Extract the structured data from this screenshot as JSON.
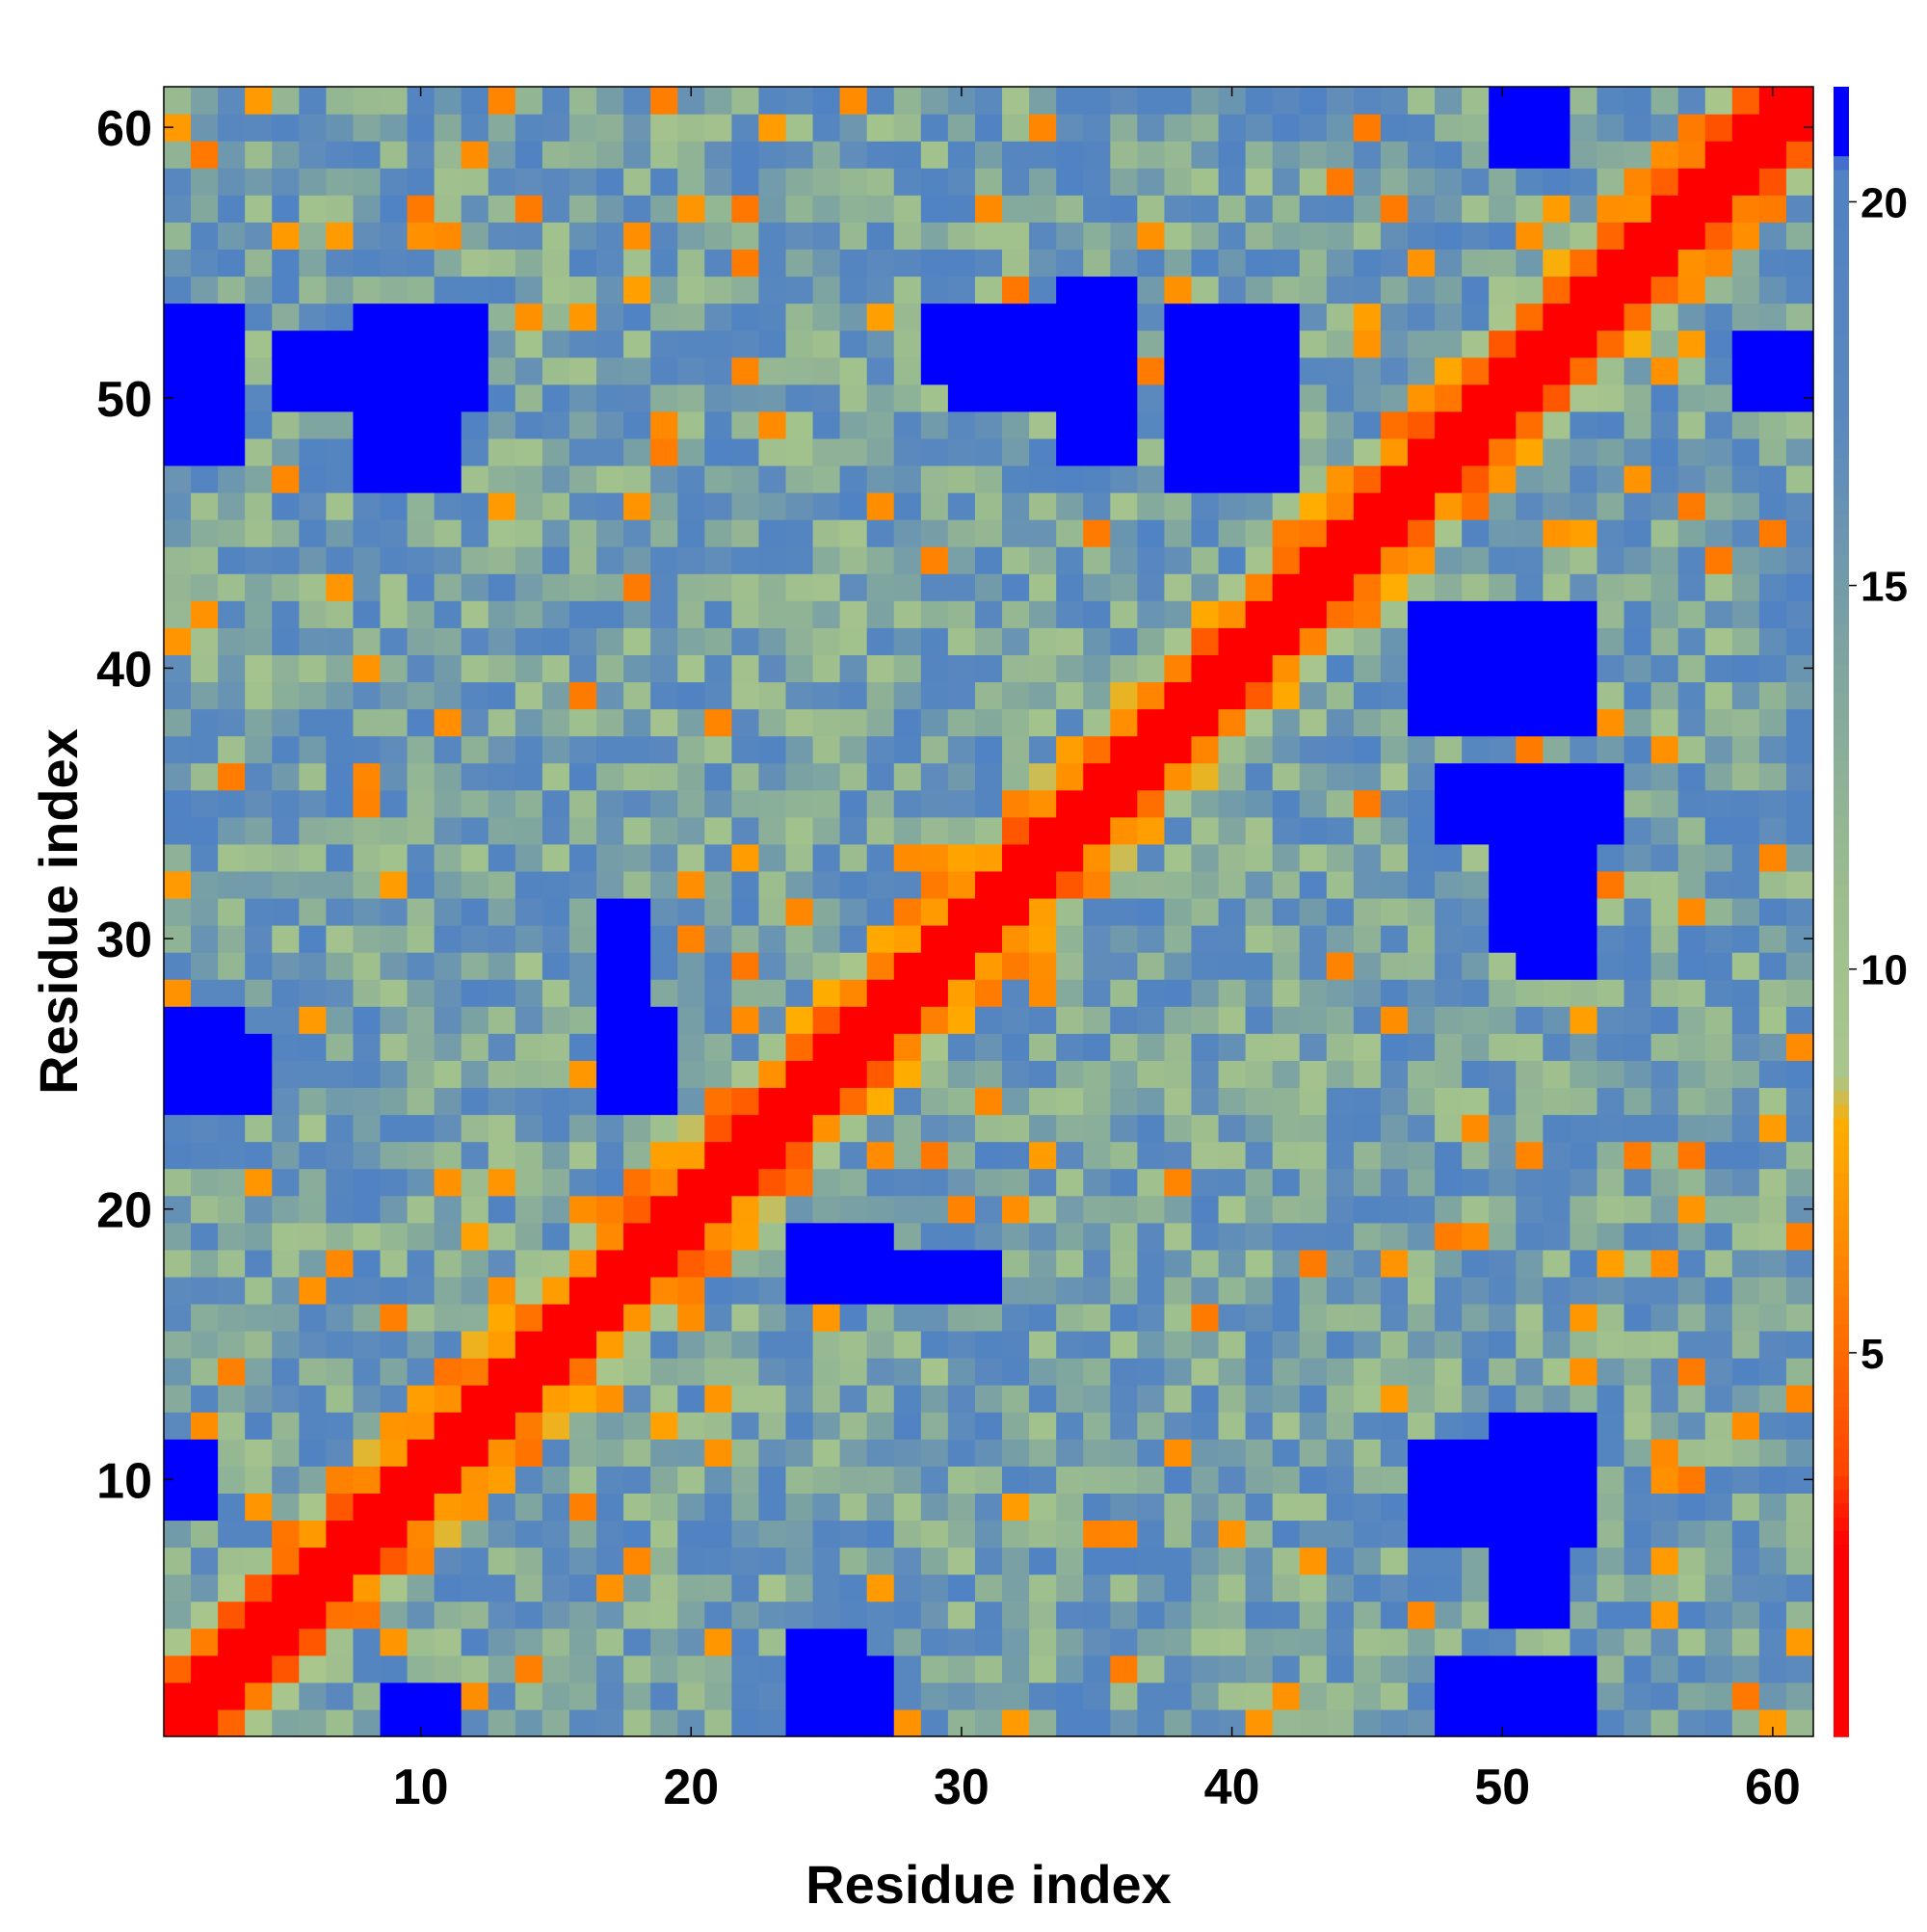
{
  "chart_data": {
    "type": "heatmap",
    "title": "",
    "xlabel": "Residue index",
    "ylabel": "Residue index",
    "x_range": [
      0.5,
      61.5
    ],
    "y_range": [
      0.5,
      61.5
    ],
    "n_residues": 61,
    "x_ticks": [
      10,
      20,
      30,
      40,
      50,
      60
    ],
    "y_ticks": [
      10,
      20,
      30,
      40,
      50,
      60
    ],
    "x_tick_labels": [
      "10",
      "20",
      "30",
      "40",
      "50",
      "60"
    ],
    "y_tick_labels": [
      "10",
      "20",
      "30",
      "40",
      "50",
      "60"
    ],
    "colorbar": {
      "range": [
        0,
        21.5
      ],
      "ticks": [
        5,
        10,
        15,
        20
      ],
      "tick_labels": [
        "5",
        "10",
        "15",
        "20"
      ],
      "stops": [
        {
          "value": 0.0,
          "color": "#ff0000"
        },
        {
          "value": 2.5,
          "color": "#ff0000"
        },
        {
          "value": 3.5,
          "color": "#ff4500"
        },
        {
          "value": 5.0,
          "color": "#ff6a00"
        },
        {
          "value": 6.5,
          "color": "#ff8c00"
        },
        {
          "value": 8.0,
          "color": "#ffad00"
        },
        {
          "value": 8.6,
          "color": "#a9c78c"
        },
        {
          "value": 11.0,
          "color": "#9cbd8e"
        },
        {
          "value": 14.0,
          "color": "#7fa5a0"
        },
        {
          "value": 17.0,
          "color": "#5b89bd"
        },
        {
          "value": 20.5,
          "color": "#4f82c4"
        },
        {
          "value": 20.6,
          "color": "#0000ff"
        },
        {
          "value": 21.5,
          "color": "#0000ff"
        }
      ]
    },
    "description_of_values": "Symmetric residue-residue distance map; diagonal ~0 (red), near-diagonal 4-8 (orange), far contacts >20 (blue).",
    "blue_regions": [
      {
        "x": [
          1,
          4
        ],
        "y": [
          24,
          26
        ]
      },
      {
        "x": [
          1,
          2
        ],
        "y": [
          9,
          11
        ]
      },
      {
        "x": [
          1,
          3
        ],
        "y": [
          50,
          53
        ]
      },
      {
        "x": [
          9,
          12
        ],
        "y": [
          50,
          53
        ]
      },
      {
        "x": [
          17,
          19
        ],
        "y": [
          24,
          26
        ]
      },
      {
        "x": [
          17,
          18
        ],
        "y": [
          28,
          31
        ]
      },
      {
        "x": [
          24,
          27
        ],
        "y": [
          1,
          3
        ]
      },
      {
        "x": [
          25,
          27
        ],
        "y": [
          17,
          19
        ]
      },
      {
        "x": [
          29,
          31
        ],
        "y": [
          17,
          18
        ]
      },
      {
        "x": [
          29,
          35
        ],
        "y": [
          51,
          53
        ]
      },
      {
        "x": [
          38,
          42
        ],
        "y": [
          47,
          53
        ]
      },
      {
        "x": [
          48,
          53
        ],
        "y": [
          38,
          42
        ]
      },
      {
        "x": [
          48,
          54
        ],
        "y": [
          34,
          36
        ]
      },
      {
        "x": [
          50,
          52
        ],
        "y": [
          30,
          33
        ]
      },
      {
        "x": [
          47,
          53
        ],
        "y": [
          8,
          11
        ]
      },
      {
        "x": [
          50,
          52
        ],
        "y": [
          5,
          7
        ]
      },
      {
        "x": [
          48,
          52
        ],
        "y": [
          1,
          3
        ]
      },
      {
        "x": [
          50,
          52
        ],
        "y": [
          59,
          61
        ]
      },
      {
        "x": [
          9,
          11
        ],
        "y": [
          1,
          1
        ]
      }
    ]
  }
}
